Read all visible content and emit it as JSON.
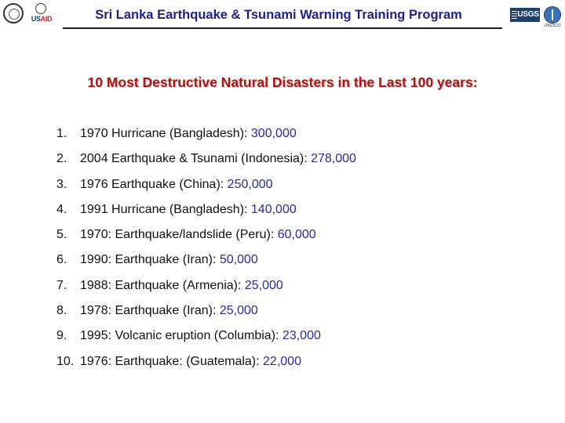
{
  "header": {
    "title": "Sri Lanka Earthquake & Tsunami Warning Training Program",
    "usaid_label_us": "US",
    "usaid_label_aid": "AID",
    "usgs_label": "USGS",
    "globe_caption": "UNESCO"
  },
  "main": {
    "subtitle": "10 Most Destructive Natural Disasters in the Last 100 years:",
    "items": [
      {
        "num": "1.",
        "event": "1970 Hurricane (Bangladesh): ",
        "count": "300,000"
      },
      {
        "num": "2.",
        "event": "2004 Earthquake & Tsunami (Indonesia): ",
        "count": "278,000"
      },
      {
        "num": "3.",
        "event": "1976 Earthquake (China): ",
        "count": "250,000"
      },
      {
        "num": "4.",
        "event": "1991 Hurricane (Bangladesh): ",
        "count": "140,000"
      },
      {
        "num": "5.",
        "event": "1970: Earthquake/landslide (Peru): ",
        "count": "60,000"
      },
      {
        "num": "6.",
        "event": "1990: Earthquake (Iran): ",
        "count": "50,000"
      },
      {
        "num": "7.",
        "event": "1988: Earthquake (Armenia): ",
        "count": "25,000"
      },
      {
        "num": "8.",
        "event": "1978: Earthquake (Iran): ",
        "count": "25,000"
      },
      {
        "num": "9.",
        "event": "1995: Volcanic eruption (Columbia): ",
        "count": "23,000"
      },
      {
        "num": "10.",
        "event": "1976: Earthquake: (Guatemala): ",
        "count": "22,000"
      }
    ]
  },
  "colors": {
    "title": "#1e1e8c",
    "subtitle": "#b01515",
    "count": "#2a2a9a"
  }
}
